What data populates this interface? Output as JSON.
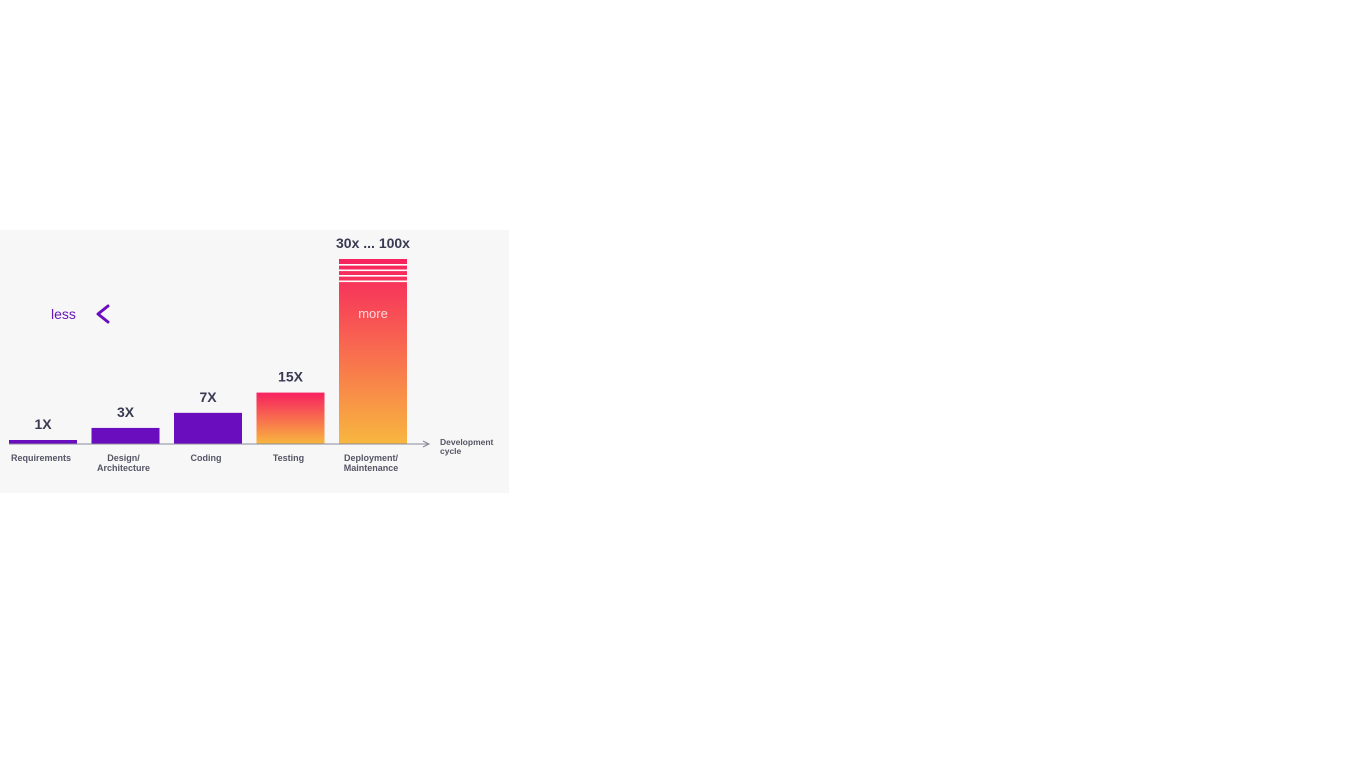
{
  "chart_data": {
    "type": "bar",
    "categories": [
      [
        "Requirements"
      ],
      [
        "Design/",
        "Architecture"
      ],
      [
        "Coding"
      ],
      [
        "Testing"
      ],
      [
        "Deployment/",
        "Maintenance"
      ]
    ],
    "values": [
      1,
      3,
      7,
      15,
      100
    ],
    "value_labels": [
      "1X",
      "3X",
      "7X",
      "15X",
      "30x ... 100x"
    ],
    "xlabel": [
      "Development",
      "cycle"
    ],
    "ylabel": "",
    "ylim": [
      0,
      100
    ],
    "grid": false,
    "legend": "none",
    "arrow": {
      "left_label": "less",
      "right_label": "more"
    },
    "colors": {
      "purple": "#6a0dbf",
      "gradient_top": "#f7215f",
      "gradient_bottom": "#f8b73f",
      "stripe": "#ffffff",
      "text": "#3a3a52",
      "axis": "#888899"
    }
  }
}
